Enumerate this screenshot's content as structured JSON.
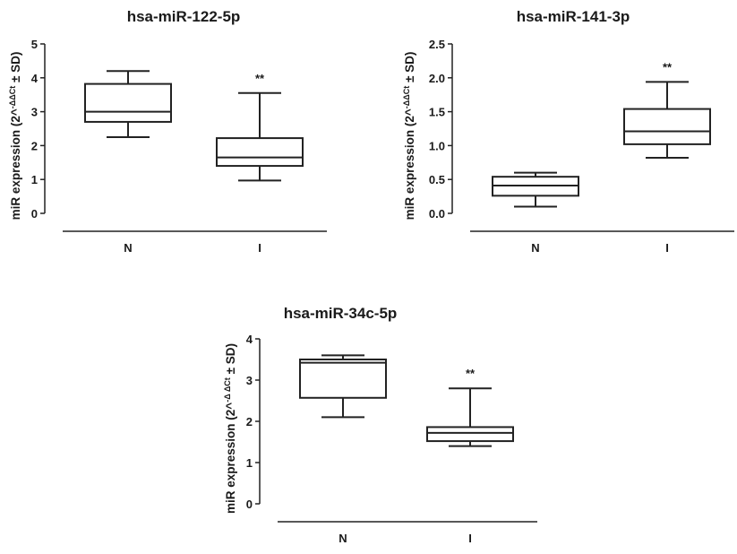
{
  "chart_data": [
    {
      "type": "box",
      "title": "hsa-miR-122-5p",
      "ylabel": {
        "prefix": "miR expression (2^",
        "sup": "-ΔΔCt",
        "suffix": " ± SD)"
      },
      "categories": [
        "N",
        "I"
      ],
      "ylim": [
        0,
        5
      ],
      "yticks": [
        "0",
        "1",
        "2",
        "3",
        "4",
        "5"
      ],
      "boxes": [
        {
          "min": 2.25,
          "q1": 2.7,
          "median": 3.0,
          "q3": 3.82,
          "max": 4.2
        },
        {
          "min": 0.97,
          "q1": 1.4,
          "median": 1.65,
          "q3": 2.22,
          "max": 3.55,
          "annotation": "**"
        }
      ]
    },
    {
      "type": "box",
      "title": "hsa-miR-141-3p",
      "ylabel": {
        "prefix": "miR expression (2^",
        "sup": "-ΔΔCt",
        "suffix": " ± SD)"
      },
      "categories": [
        "N",
        "I"
      ],
      "ylim": [
        0,
        2.5
      ],
      "yticks": [
        "0.0",
        "0.5",
        "1.0",
        "1.5",
        "2.0",
        "2.5"
      ],
      "boxes": [
        {
          "min": 0.1,
          "q1": 0.26,
          "median": 0.41,
          "q3": 0.54,
          "max": 0.6
        },
        {
          "min": 0.82,
          "q1": 1.02,
          "median": 1.21,
          "q3": 1.54,
          "max": 1.94,
          "annotation": "**"
        }
      ]
    },
    {
      "type": "box",
      "title": "hsa-miR-34c-5p",
      "ylabel": {
        "prefix": "miR expression (2^",
        "sup": "-Δ ΔCt",
        "suffix": " ± SD)"
      },
      "categories": [
        "N",
        "I"
      ],
      "ylim": [
        0,
        4
      ],
      "yticks": [
        "0",
        "1",
        "2",
        "3",
        "4"
      ],
      "boxes": [
        {
          "min": 2.1,
          "q1": 2.57,
          "median": 3.42,
          "q3": 3.5,
          "max": 3.6
        },
        {
          "min": 1.4,
          "q1": 1.52,
          "median": 1.72,
          "q3": 1.86,
          "max": 2.8,
          "annotation": "**"
        }
      ]
    }
  ]
}
